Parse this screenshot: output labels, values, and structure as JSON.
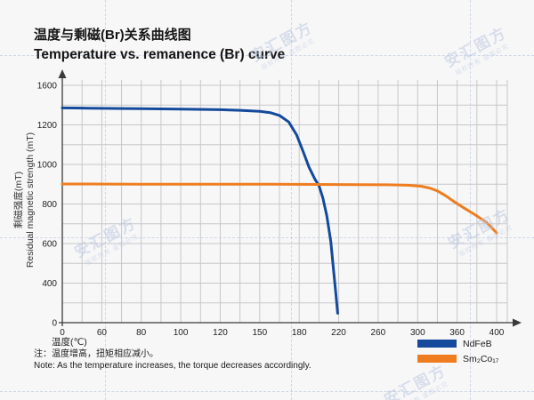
{
  "header": {
    "title_zh": "温度与剩磁(Br)关系曲线图",
    "title_en": "Temperature vs. remanence (Br) curve"
  },
  "chart_data": {
    "type": "line",
    "title": "Temperature vs. remanence (Br) curve",
    "x_axis": {
      "title": "温度(℃)",
      "ticks": [
        0,
        60,
        80,
        100,
        120,
        150,
        180,
        220,
        260,
        300,
        360,
        400
      ]
    },
    "y_axis": {
      "title_zh": "剩磁强度(mT)",
      "title_en": "Residual magnetic strength (mT)",
      "ticks": [
        0,
        400,
        600,
        800,
        1000,
        1200,
        1600
      ]
    },
    "grid": true,
    "legend_position": "bottom-right",
    "series": [
      {
        "name": "NdFeB",
        "color": "#14499b",
        "points": [
          [
            0,
            1372
          ],
          [
            20,
            1371
          ],
          [
            40,
            1369
          ],
          [
            60,
            1367
          ],
          [
            80,
            1364
          ],
          [
            100,
            1360
          ],
          [
            120,
            1354
          ],
          [
            135,
            1347
          ],
          [
            150,
            1337
          ],
          [
            158,
            1324
          ],
          [
            165,
            1295
          ],
          [
            172,
            1230
          ],
          [
            178,
            1150
          ],
          [
            184,
            1065
          ],
          [
            190,
            985
          ],
          [
            196,
            925
          ],
          [
            200,
            893
          ],
          [
            204,
            830
          ],
          [
            208,
            740
          ],
          [
            212,
            610
          ],
          [
            215,
            455
          ],
          [
            217,
            310
          ],
          [
            219,
            95
          ]
        ]
      },
      {
        "name": "Sm₂Co₁₇",
        "color": "#ef7d1f",
        "points": [
          [
            0,
            901
          ],
          [
            40,
            901
          ],
          [
            80,
            900
          ],
          [
            120,
            900
          ],
          [
            160,
            900
          ],
          [
            200,
            899
          ],
          [
            240,
            898
          ],
          [
            270,
            897
          ],
          [
            290,
            895
          ],
          [
            305,
            890
          ],
          [
            318,
            881
          ],
          [
            330,
            866
          ],
          [
            342,
            843
          ],
          [
            354,
            815
          ],
          [
            366,
            783
          ],
          [
            378,
            746
          ],
          [
            390,
            706
          ],
          [
            400,
            654
          ]
        ]
      }
    ]
  },
  "notes": {
    "zh": "注：温度增高，扭矩相应减小。",
    "en": "Note: As the temperature increases, the torque decreases accordingly."
  },
  "watermark": {
    "brand": "安汇图方",
    "notice": "版权所有 盗图必究"
  }
}
